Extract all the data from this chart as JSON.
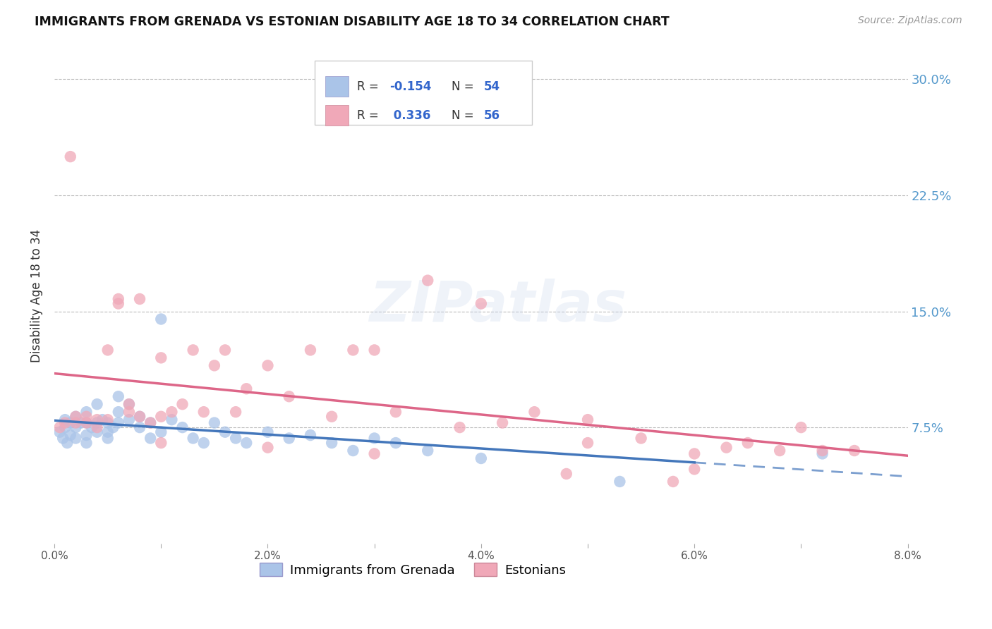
{
  "title": "IMMIGRANTS FROM GRENADA VS ESTONIAN DISABILITY AGE 18 TO 34 CORRELATION CHART",
  "source": "Source: ZipAtlas.com",
  "ylabel": "Disability Age 18 to 34",
  "ytick_labels": [
    "7.5%",
    "15.0%",
    "22.5%",
    "30.0%"
  ],
  "ytick_values": [
    0.075,
    0.15,
    0.225,
    0.3
  ],
  "xlim": [
    0.0,
    0.08
  ],
  "ylim": [
    0.0,
    0.32
  ],
  "legend_label1": "Immigrants from Grenada",
  "legend_label2": "Estonians",
  "r1": "-0.154",
  "n1": "54",
  "r2": "0.336",
  "n2": "56",
  "color1": "#aac4e8",
  "color2": "#f0a8b8",
  "line1_color": "#4477bb",
  "line2_color": "#dd6688",
  "watermark": "ZIPatlas",
  "scatter1_x": [
    0.0005,
    0.0008,
    0.001,
    0.001,
    0.0012,
    0.0015,
    0.0015,
    0.002,
    0.002,
    0.002,
    0.0025,
    0.003,
    0.003,
    0.003,
    0.003,
    0.0035,
    0.004,
    0.004,
    0.004,
    0.0045,
    0.005,
    0.005,
    0.005,
    0.0055,
    0.006,
    0.006,
    0.006,
    0.007,
    0.007,
    0.008,
    0.008,
    0.009,
    0.009,
    0.01,
    0.01,
    0.011,
    0.012,
    0.013,
    0.014,
    0.015,
    0.016,
    0.017,
    0.018,
    0.02,
    0.022,
    0.024,
    0.026,
    0.028,
    0.03,
    0.032,
    0.035,
    0.04,
    0.053,
    0.072
  ],
  "scatter1_y": [
    0.072,
    0.068,
    0.075,
    0.08,
    0.065,
    0.07,
    0.078,
    0.082,
    0.075,
    0.068,
    0.078,
    0.085,
    0.078,
    0.07,
    0.065,
    0.075,
    0.09,
    0.078,
    0.072,
    0.08,
    0.078,
    0.072,
    0.068,
    0.075,
    0.095,
    0.085,
    0.078,
    0.09,
    0.08,
    0.082,
    0.075,
    0.078,
    0.068,
    0.145,
    0.072,
    0.08,
    0.075,
    0.068,
    0.065,
    0.078,
    0.072,
    0.068,
    0.065,
    0.072,
    0.068,
    0.07,
    0.065,
    0.06,
    0.068,
    0.065,
    0.06,
    0.055,
    0.04,
    0.058
  ],
  "scatter2_x": [
    0.0005,
    0.001,
    0.0015,
    0.002,
    0.002,
    0.003,
    0.003,
    0.004,
    0.004,
    0.005,
    0.005,
    0.006,
    0.006,
    0.007,
    0.007,
    0.008,
    0.008,
    0.009,
    0.01,
    0.01,
    0.011,
    0.012,
    0.013,
    0.014,
    0.015,
    0.016,
    0.017,
    0.018,
    0.02,
    0.022,
    0.024,
    0.026,
    0.028,
    0.03,
    0.032,
    0.035,
    0.038,
    0.04,
    0.042,
    0.045,
    0.048,
    0.05,
    0.055,
    0.058,
    0.06,
    0.063,
    0.065,
    0.068,
    0.07,
    0.072,
    0.075,
    0.01,
    0.02,
    0.03,
    0.05,
    0.06
  ],
  "scatter2_y": [
    0.075,
    0.078,
    0.25,
    0.078,
    0.082,
    0.082,
    0.078,
    0.08,
    0.075,
    0.125,
    0.08,
    0.155,
    0.158,
    0.09,
    0.085,
    0.158,
    0.082,
    0.078,
    0.12,
    0.082,
    0.085,
    0.09,
    0.125,
    0.085,
    0.115,
    0.125,
    0.085,
    0.1,
    0.115,
    0.095,
    0.125,
    0.082,
    0.125,
    0.125,
    0.085,
    0.17,
    0.075,
    0.155,
    0.078,
    0.085,
    0.045,
    0.08,
    0.068,
    0.04,
    0.048,
    0.062,
    0.065,
    0.06,
    0.075,
    0.06,
    0.06,
    0.065,
    0.062,
    0.058,
    0.065,
    0.058
  ],
  "line1_x_solid_end": 0.06,
  "line1_x_dash_end": 0.08,
  "line2_x_end": 0.08
}
